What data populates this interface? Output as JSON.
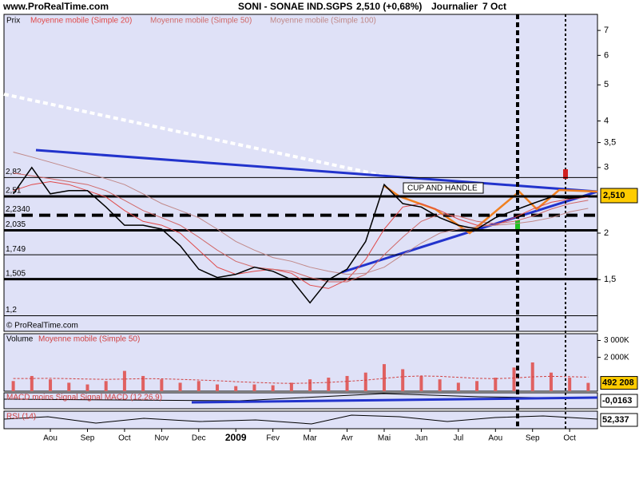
{
  "header": {
    "site": "www.ProRealTime.com",
    "symbol": "SONI - SONAE IND.SGPS",
    "quote": "2,510 (+0,68%)",
    "period": "Journalier",
    "date": "7 Oct",
    "last_price": "2,510"
  },
  "chart_data": [
    {
      "type": "line",
      "title": "Prix",
      "log_scale": true,
      "color": "#000000",
      "categories": [
        null,
        null,
        "Aou",
        null,
        "Sep",
        null,
        "Oct",
        null,
        "Nov",
        null,
        "Dec",
        null,
        "2009",
        null,
        "Fev",
        null,
        "Mar",
        null,
        "Avr",
        null,
        "Mai",
        null,
        "Jun",
        null,
        "Jul",
        null,
        "Aou",
        null,
        "Sep",
        null,
        "Oct",
        null
      ],
      "values": [
        2.55,
        3.0,
        2.55,
        2.6,
        2.6,
        2.35,
        2.1,
        2.1,
        2.05,
        1.85,
        1.6,
        1.52,
        1.55,
        1.62,
        1.58,
        1.5,
        1.3,
        1.5,
        1.6,
        1.9,
        2.7,
        2.4,
        2.35,
        2.2,
        2.1,
        2.05,
        2.2,
        2.3,
        2.4,
        2.5,
        2.48,
        2.51
      ],
      "series": [
        {
          "name": "Moyenne mobile (Simple 20)",
          "color": "#e04848",
          "values": [
            2.6,
            2.7,
            2.75,
            2.7,
            2.6,
            2.5,
            2.3,
            2.15,
            2.1,
            2.0,
            1.8,
            1.62,
            1.55,
            1.58,
            1.6,
            1.56,
            1.45,
            1.42,
            1.5,
            1.7,
            2.05,
            2.35,
            2.4,
            2.3,
            2.18,
            2.1,
            2.1,
            2.2,
            2.32,
            2.42,
            2.47,
            2.5
          ]
        },
        {
          "name": "Moyenne mobile (Simple 50)",
          "color": "#d06868",
          "values": [
            2.9,
            2.85,
            2.8,
            2.75,
            2.7,
            2.6,
            2.45,
            2.3,
            2.2,
            2.1,
            1.95,
            1.8,
            1.68,
            1.62,
            1.6,
            1.58,
            1.52,
            1.48,
            1.48,
            1.55,
            1.75,
            1.95,
            2.15,
            2.25,
            2.22,
            2.15,
            2.12,
            2.15,
            2.22,
            2.32,
            2.4,
            2.45
          ]
        },
        {
          "name": "Moyenne mobile (Simple 100)",
          "color": "#c08888",
          "values": [
            3.3,
            3.2,
            3.1,
            3.0,
            2.9,
            2.8,
            2.7,
            2.55,
            2.4,
            2.3,
            2.2,
            2.05,
            1.9,
            1.8,
            1.72,
            1.68,
            1.62,
            1.58,
            1.55,
            1.56,
            1.62,
            1.75,
            1.88,
            2.0,
            2.05,
            2.08,
            2.1,
            2.12,
            2.15,
            2.2,
            2.28,
            2.33
          ]
        }
      ],
      "ylim": [
        1.09,
        7.73
      ],
      "yticks": [
        {
          "value": 1.5,
          "label": "1,5"
        },
        2,
        3,
        {
          "value": 3.5,
          "label": "3,5"
        },
        4,
        5,
        6,
        7
      ],
      "levels": [
        {
          "value": 2.82,
          "label": "2,82",
          "style": "thin"
        },
        {
          "value": 2.51,
          "label": "2,51",
          "style": "thick"
        },
        {
          "value": 2.234,
          "label": "2,2340",
          "style": "dashed"
        },
        {
          "value": 2.035,
          "label": "2,035",
          "style": "thick"
        },
        {
          "value": 1.749,
          "label": "1,749",
          "style": "thin"
        },
        {
          "value": 1.505,
          "label": "1,505",
          "style": "thick"
        },
        {
          "value": 1.2,
          "label": "1,2",
          "style": "thin"
        }
      ],
      "annotations": [
        "CUP AND HANDLE",
        "© ProRealTime.com"
      ]
    },
    {
      "type": "bar",
      "title": "Volume",
      "color": "#e06060",
      "values": [
        600000,
        900000,
        700000,
        500000,
        400000,
        600000,
        1200000,
        900000,
        700000,
        500000,
        600000,
        400000,
        300000,
        400000,
        350000,
        500000,
        700000,
        800000,
        900000,
        1100000,
        1600000,
        1300000,
        900000,
        700000,
        500000,
        600000,
        800000,
        1400000,
        1700000,
        1100000,
        800000,
        492208
      ],
      "series": [
        {
          "name": "Moyenne mobile (Simple 50)",
          "color": "#d04040",
          "values": [
            750000,
            750000,
            760000,
            740000,
            720000,
            700000,
            720000,
            740000,
            730000,
            700000,
            660000,
            620000,
            560000,
            520000,
            480000,
            460000,
            480000,
            520000,
            580000,
            650000,
            760000,
            860000,
            900000,
            880000,
            820000,
            760000,
            740000,
            780000,
            850000,
            880000,
            860000,
            830000
          ]
        }
      ],
      "ylim": [
        0,
        3400000
      ],
      "yticks": [
        {
          "value": 2000000,
          "label": "2 000K"
        },
        {
          "value": 3000000,
          "label": "3 000K"
        }
      ],
      "last_value": {
        "value": 492208,
        "label": "492 208"
      }
    }
  ],
  "indicators": [
    {
      "label": "MACD moins Signal Signal MACD (12,26,9)",
      "value": "-0,0163"
    },
    {
      "label": "RSI (14)",
      "value": "52,337"
    }
  ]
}
